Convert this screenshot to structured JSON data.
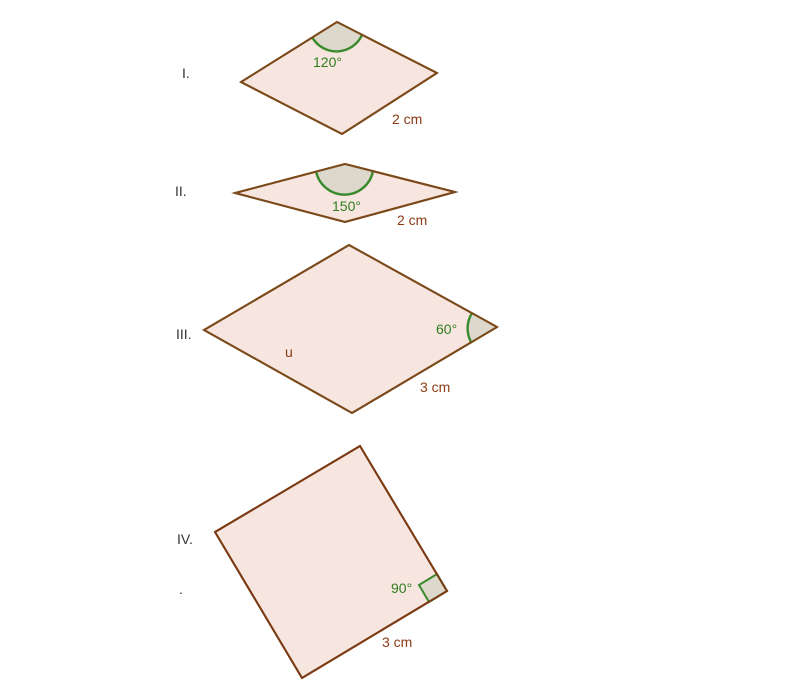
{
  "figures": [
    {
      "roman": "I.",
      "angle": "120°",
      "side": "2 cm"
    },
    {
      "roman": "II.",
      "angle": "150°",
      "side": "2 cm"
    },
    {
      "roman": "III.",
      "angle": "60°",
      "side": "3 cm",
      "inner_label": "u"
    },
    {
      "roman": "IV.",
      "angle": "90°",
      "side": "3 cm"
    }
  ],
  "dot": "."
}
